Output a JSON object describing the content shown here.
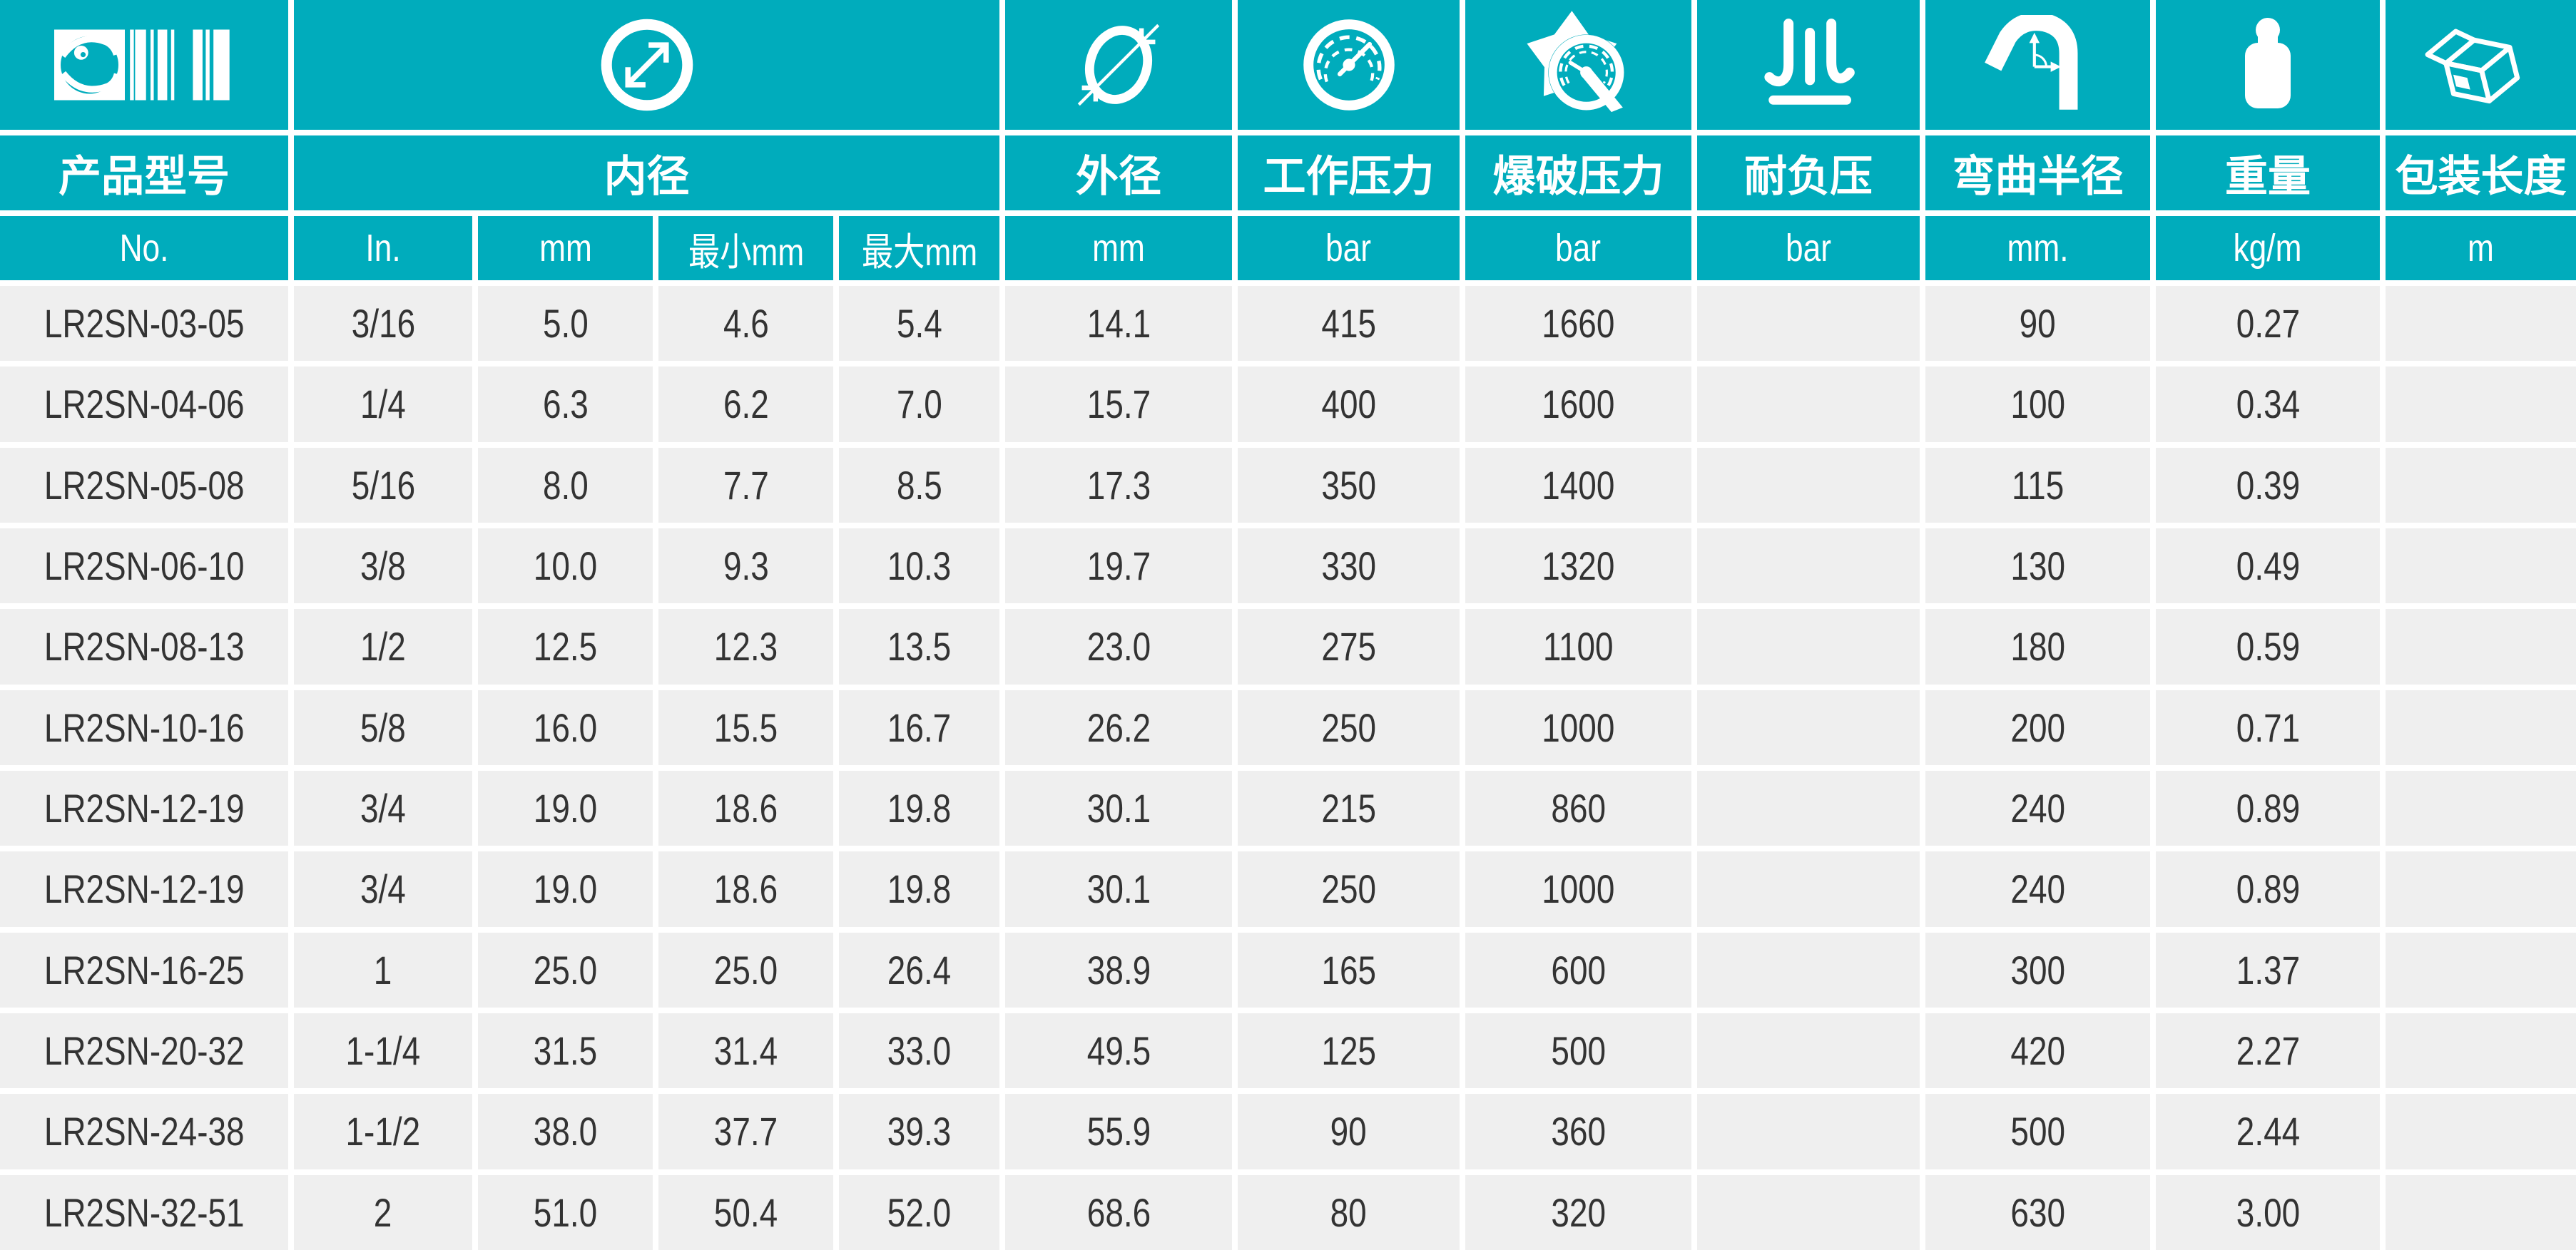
{
  "colors": {
    "accent": "#00ACBC",
    "row_bg": "#EFEFEF",
    "divider": "#FFFFFF",
    "text": "#333333",
    "header_text": "#FFFFFF"
  },
  "table": {
    "column_groups": [
      {
        "label": "产品型号",
        "icon": "brand-barcode-icon",
        "span": 1
      },
      {
        "label": "内径",
        "icon": "inner-diameter-icon",
        "span": 4
      },
      {
        "label": "外径",
        "icon": "outer-diameter-icon",
        "span": 1
      },
      {
        "label": "工作压力",
        "icon": "working-pressure-gauge-icon",
        "span": 1
      },
      {
        "label": "爆破压力",
        "icon": "burst-pressure-icon",
        "span": 1
      },
      {
        "label": "耐负压",
        "icon": "vacuum-resistance-icon",
        "span": 1
      },
      {
        "label": "弯曲半径",
        "icon": "bend-radius-icon",
        "span": 1
      },
      {
        "label": "重量",
        "icon": "weight-icon",
        "span": 1
      },
      {
        "label": "包装长度",
        "icon": "package-length-icon",
        "span": 1
      }
    ],
    "units": [
      "No.",
      "In.",
      "mm",
      "最小mm",
      "最大mm",
      "mm",
      "bar",
      "bar",
      "bar",
      "mm.",
      "kg/m",
      "m"
    ],
    "rows": [
      [
        "LR2SN-03-05",
        "3/16",
        "5.0",
        "4.6",
        "5.4",
        "14.1",
        "415",
        "1660",
        "",
        "90",
        "0.27",
        ""
      ],
      [
        "LR2SN-04-06",
        "1/4",
        "6.3",
        "6.2",
        "7.0",
        "15.7",
        "400",
        "1600",
        "",
        "100",
        "0.34",
        ""
      ],
      [
        "LR2SN-05-08",
        "5/16",
        "8.0",
        "7.7",
        "8.5",
        "17.3",
        "350",
        "1400",
        "",
        "115",
        "0.39",
        ""
      ],
      [
        "LR2SN-06-10",
        "3/8",
        "10.0",
        "9.3",
        "10.3",
        "19.7",
        "330",
        "1320",
        "",
        "130",
        "0.49",
        ""
      ],
      [
        "LR2SN-08-13",
        "1/2",
        "12.5",
        "12.3",
        "13.5",
        "23.0",
        "275",
        "1100",
        "",
        "180",
        "0.59",
        ""
      ],
      [
        "LR2SN-10-16",
        "5/8",
        "16.0",
        "15.5",
        "16.7",
        "26.2",
        "250",
        "1000",
        "",
        "200",
        "0.71",
        ""
      ],
      [
        "LR2SN-12-19",
        "3/4",
        "19.0",
        "18.6",
        "19.8",
        "30.1",
        "215",
        "860",
        "",
        "240",
        "0.89",
        ""
      ],
      [
        "LR2SN-12-19",
        "3/4",
        "19.0",
        "18.6",
        "19.8",
        "30.1",
        "250",
        "1000",
        "",
        "240",
        "0.89",
        ""
      ],
      [
        "LR2SN-16-25",
        "1",
        "25.0",
        "25.0",
        "26.4",
        "38.9",
        "165",
        "600",
        "",
        "300",
        "1.37",
        ""
      ],
      [
        "LR2SN-20-32",
        "1-1/4",
        "31.5",
        "31.4",
        "33.0",
        "49.5",
        "125",
        "500",
        "",
        "420",
        "2.27",
        ""
      ],
      [
        "LR2SN-24-38",
        "1-1/2",
        "38.0",
        "37.7",
        "39.3",
        "55.9",
        "90",
        "360",
        "",
        "500",
        "2.44",
        ""
      ],
      [
        "LR2SN-32-51",
        "2",
        "51.0",
        "50.4",
        "52.0",
        "68.6",
        "80",
        "320",
        "",
        "630",
        "3.00",
        ""
      ]
    ]
  }
}
